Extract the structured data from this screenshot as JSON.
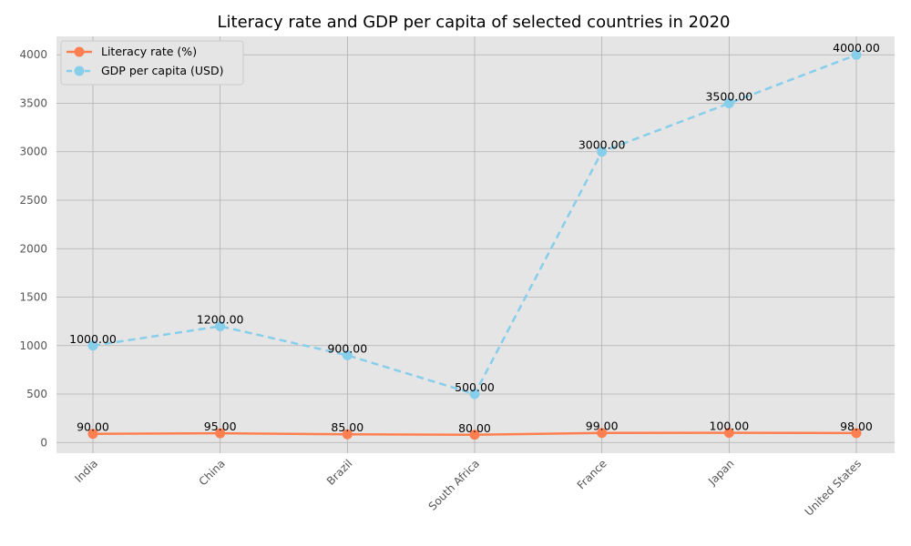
{
  "chart_data": {
    "type": "line",
    "title": "Literacy rate and GDP per capita of selected countries in 2020",
    "xlabel": "",
    "ylabel": "",
    "categories": [
      "India",
      "China",
      "Brazil",
      "South Africa",
      "France",
      "Japan",
      "United States"
    ],
    "series": [
      {
        "name": "Literacy rate (%)",
        "values": [
          90,
          95,
          85,
          80,
          99,
          100,
          98
        ],
        "color": "#ff7f50",
        "line_style": "solid"
      },
      {
        "name": "GDP per capita (USD)",
        "values": [
          1000,
          1200,
          900,
          500,
          3000,
          3500,
          4000
        ],
        "color": "#87ceeb",
        "line_style": "dashed"
      }
    ],
    "data_labels": {
      "literacy": [
        "90.00",
        "95.00",
        "85.00",
        "80.00",
        "99.00",
        "100.00",
        "98.00"
      ],
      "gdp": [
        "1000.00",
        "1200.00",
        "900.00",
        "500.00",
        "3000.00",
        "3500.00",
        "4000.00"
      ]
    },
    "yticks": [
      "0",
      "500",
      "1000",
      "1500",
      "2000",
      "2500",
      "3000",
      "3500",
      "4000"
    ],
    "ylim": [
      -110,
      4190
    ],
    "grid": true,
    "legend_position": "upper-left",
    "background_color": "#e5e5e5",
    "grid_color": "#b0b0b0"
  }
}
